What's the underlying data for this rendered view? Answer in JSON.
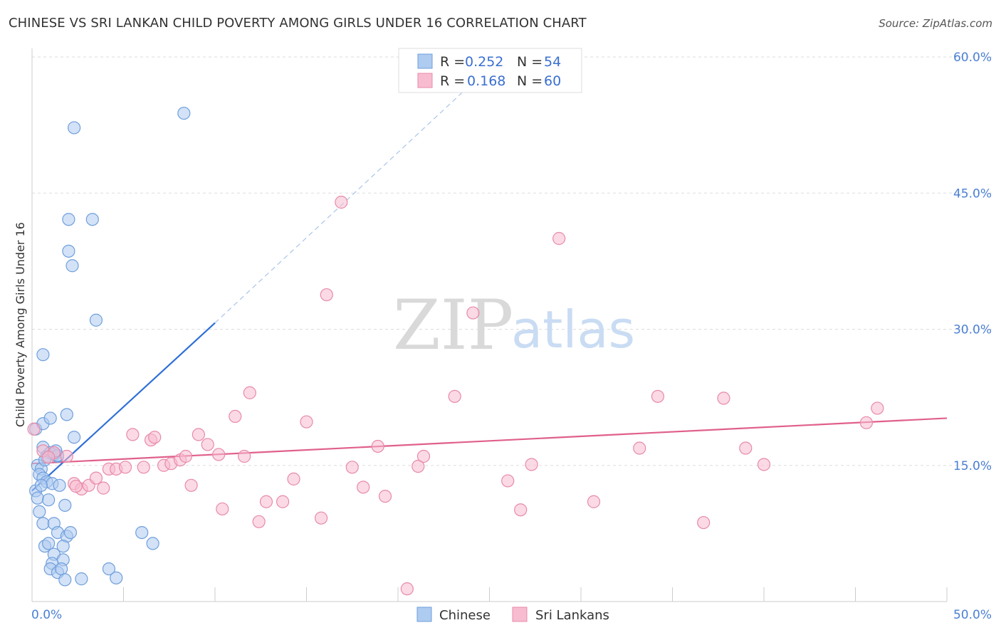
{
  "header": {
    "title": "CHINESE VS SRI LANKAN CHILD POVERTY AMONG GIRLS UNDER 16 CORRELATION CHART",
    "source": "Source: ZipAtlas.com"
  },
  "watermark": {
    "zip": "ZIP",
    "atlas": "atlas"
  },
  "legend": {
    "r_label": "R =",
    "n_label": "N =",
    "rows": [
      {
        "r": "0.252",
        "n": "54",
        "fill": "#aecbf0",
        "stroke": "#6f9fdc"
      },
      {
        "r": "0.168",
        "n": "60",
        "fill": "#f7bcd0",
        "stroke": "#e88aa8"
      }
    ]
  },
  "bottom_legend": [
    {
      "label": "Chinese",
      "fill": "#aecbf0",
      "stroke": "#6f9fdc"
    },
    {
      "label": "Sri Lankans",
      "fill": "#f7bcd0",
      "stroke": "#e88aa8"
    }
  ],
  "chart_data": {
    "type": "scatter",
    "title": "CHINESE VS SRI LANKAN CHILD POVERTY AMONG GIRLS UNDER 16 CORRELATION CHART",
    "xlabel": "",
    "ylabel": "Child Poverty Among Girls Under 16",
    "xlim": [
      0,
      50
    ],
    "ylim": [
      0,
      60
    ],
    "x_tick_labels": [
      "0.0%",
      "50.0%"
    ],
    "y_ticks": [
      15,
      30,
      45,
      60
    ],
    "y_tick_labels": [
      "15.0%",
      "30.0%",
      "45.0%",
      "60.0%"
    ],
    "grid": true,
    "legend_position": "top-center",
    "series": [
      {
        "name": "Chinese",
        "color": "#6f9fdc",
        "fill": "#aecbf0",
        "line_color": "#2f6fd6",
        "trend": {
          "x": [
            0.0,
            10.0
          ],
          "y": [
            12.2,
            30.7
          ],
          "dashed_to": [
            24.0,
            57.0
          ]
        },
        "points": [
          [
            0.2,
            19.0
          ],
          [
            0.6,
            17.0
          ],
          [
            0.8,
            16.0
          ],
          [
            1.0,
            16.4
          ],
          [
            1.2,
            16.2
          ],
          [
            1.4,
            16.0
          ],
          [
            0.3,
            15.0
          ],
          [
            0.5,
            14.6
          ],
          [
            0.4,
            14.0
          ],
          [
            0.6,
            13.6
          ],
          [
            0.8,
            13.2
          ],
          [
            1.1,
            13.0
          ],
          [
            1.5,
            12.8
          ],
          [
            0.2,
            12.2
          ],
          [
            0.3,
            11.4
          ],
          [
            0.9,
            11.2
          ],
          [
            1.8,
            10.6
          ],
          [
            0.4,
            9.9
          ],
          [
            0.6,
            8.6
          ],
          [
            1.2,
            8.6
          ],
          [
            1.4,
            7.6
          ],
          [
            1.9,
            7.2
          ],
          [
            2.1,
            7.6
          ],
          [
            0.7,
            6.1
          ],
          [
            0.9,
            6.4
          ],
          [
            1.7,
            6.1
          ],
          [
            1.2,
            5.2
          ],
          [
            1.7,
            4.6
          ],
          [
            1.1,
            4.2
          ],
          [
            1.0,
            3.6
          ],
          [
            1.4,
            3.2
          ],
          [
            1.6,
            3.6
          ],
          [
            1.8,
            2.4
          ],
          [
            2.7,
            2.5
          ],
          [
            4.2,
            3.6
          ],
          [
            4.6,
            2.6
          ],
          [
            6.0,
            7.6
          ],
          [
            6.6,
            6.4
          ],
          [
            0.6,
            27.2
          ],
          [
            1.9,
            20.6
          ],
          [
            2.3,
            18.1
          ],
          [
            0.6,
            19.6
          ],
          [
            1.4,
            16.1
          ],
          [
            1.0,
            20.2
          ],
          [
            3.5,
            31.0
          ],
          [
            2.2,
            37.0
          ],
          [
            2.0,
            38.6
          ],
          [
            2.0,
            42.1
          ],
          [
            3.3,
            42.1
          ],
          [
            2.3,
            52.2
          ],
          [
            8.3,
            53.8
          ],
          [
            0.5,
            12.8
          ],
          [
            1.3,
            16.6
          ],
          [
            0.7,
            15.6
          ]
        ]
      },
      {
        "name": "Sri Lankans",
        "color": "#e88aa8",
        "fill": "#f7bcd0",
        "line_color": "#e0608a",
        "trend": {
          "x": [
            0.0,
            50.0
          ],
          "y": [
            15.2,
            20.2
          ]
        },
        "points": [
          [
            0.1,
            19.0
          ],
          [
            0.6,
            16.6
          ],
          [
            1.2,
            16.4
          ],
          [
            1.9,
            16.0
          ],
          [
            2.3,
            13.0
          ],
          [
            2.7,
            12.4
          ],
          [
            3.1,
            12.8
          ],
          [
            3.5,
            13.6
          ],
          [
            3.9,
            12.5
          ],
          [
            4.2,
            14.6
          ],
          [
            4.6,
            14.6
          ],
          [
            5.1,
            14.8
          ],
          [
            5.5,
            18.4
          ],
          [
            6.1,
            14.8
          ],
          [
            6.5,
            17.8
          ],
          [
            6.7,
            18.1
          ],
          [
            7.2,
            15.0
          ],
          [
            7.6,
            15.2
          ],
          [
            8.1,
            15.6
          ],
          [
            8.4,
            16.0
          ],
          [
            8.7,
            12.8
          ],
          [
            9.1,
            18.4
          ],
          [
            9.6,
            17.3
          ],
          [
            10.2,
            16.2
          ],
          [
            10.4,
            10.2
          ],
          [
            11.1,
            20.4
          ],
          [
            11.6,
            16.0
          ],
          [
            11.9,
            23.0
          ],
          [
            12.4,
            8.8
          ],
          [
            12.8,
            11.0
          ],
          [
            13.7,
            11.0
          ],
          [
            14.3,
            13.5
          ],
          [
            15.0,
            19.8
          ],
          [
            15.8,
            9.2
          ],
          [
            16.1,
            33.8
          ],
          [
            16.9,
            44.0
          ],
          [
            17.5,
            14.8
          ],
          [
            18.1,
            12.6
          ],
          [
            18.9,
            17.1
          ],
          [
            19.3,
            11.6
          ],
          [
            20.5,
            1.4
          ],
          [
            21.1,
            14.9
          ],
          [
            21.4,
            16.0
          ],
          [
            23.1,
            22.6
          ],
          [
            24.1,
            31.8
          ],
          [
            26.0,
            13.3
          ],
          [
            26.7,
            10.1
          ],
          [
            27.3,
            15.1
          ],
          [
            28.8,
            40.0
          ],
          [
            30.7,
            11.0
          ],
          [
            33.2,
            16.9
          ],
          [
            34.2,
            22.6
          ],
          [
            36.7,
            8.7
          ],
          [
            37.8,
            22.4
          ],
          [
            39.0,
            16.9
          ],
          [
            40.0,
            15.1
          ],
          [
            45.6,
            19.7
          ],
          [
            46.2,
            21.3
          ],
          [
            0.9,
            15.9
          ],
          [
            2.4,
            12.7
          ]
        ]
      }
    ]
  }
}
